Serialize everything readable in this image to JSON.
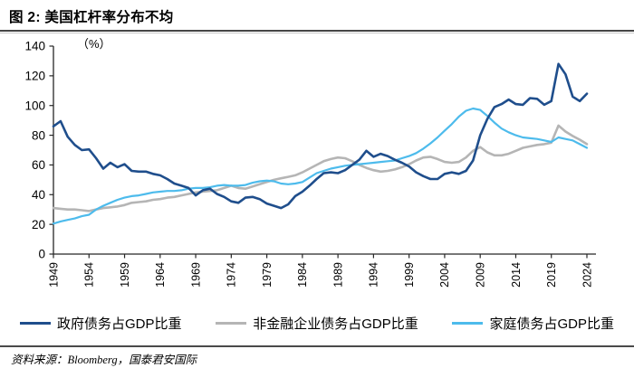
{
  "header": {
    "title": "图 2: 美国杠杆率分布不均"
  },
  "footer": {
    "source": "资料来源：Bloomberg，国泰君安国际"
  },
  "chart_data": {
    "type": "line",
    "title": "美国杠杆率分布不均",
    "unit_label": "（%）",
    "xlabel": "",
    "ylabel": "%",
    "ylim": [
      0,
      140
    ],
    "yticks": [
      0,
      20,
      40,
      60,
      80,
      100,
      120,
      140
    ],
    "xticks": [
      1949,
      1954,
      1959,
      1964,
      1969,
      1974,
      1979,
      1984,
      1989,
      1994,
      1999,
      2004,
      2009,
      2014,
      2019,
      2024
    ],
    "grid": false,
    "legend_position": "bottom",
    "axis_color": "#262626",
    "x_start": 1949,
    "x_end": 2024,
    "x_step": 1,
    "series": [
      {
        "name": "政府债务占GDP比重",
        "color": "#1f4e8c",
        "width": 2.6,
        "values": [
          86,
          89.5,
          79,
          73.5,
          70,
          70.5,
          64.5,
          57.5,
          61.5,
          58.5,
          60.5,
          56,
          55.5,
          55.5,
          54,
          53,
          50.5,
          47.5,
          46,
          44.5,
          39.5,
          43,
          44,
          40.5,
          38.5,
          35.5,
          34.5,
          38,
          38.5,
          37,
          34,
          32.5,
          31,
          33.5,
          39,
          42,
          46,
          50.5,
          54.5,
          55,
          54.5,
          56.5,
          60,
          63.5,
          69.5,
          65.5,
          67.5,
          66,
          63.5,
          61.5,
          59,
          55,
          52.5,
          50.5,
          50.5,
          54,
          55,
          54,
          56,
          63,
          80,
          91,
          99,
          101,
          104,
          101,
          100.5,
          105,
          104.5,
          100.5,
          103,
          128,
          121,
          106,
          103,
          108
        ]
      },
      {
        "name": "非金融企业债务占GDP比重",
        "color": "#b5b5b5",
        "width": 2.6,
        "values": [
          31,
          30.5,
          30,
          30,
          29.5,
          29,
          30,
          31,
          31.5,
          32,
          33,
          34.5,
          35,
          35.5,
          36.5,
          37,
          38,
          38.5,
          39.5,
          40.5,
          41.5,
          42,
          42.5,
          43,
          44.5,
          46,
          44.5,
          44,
          45.5,
          47,
          48.5,
          50,
          51,
          52,
          53,
          55,
          57.5,
          60,
          62.5,
          64,
          65,
          64.5,
          62.5,
          60,
          58,
          56.5,
          55.5,
          56,
          57,
          58.5,
          60.5,
          63,
          65,
          65.5,
          64,
          62,
          61.5,
          62,
          65,
          69.5,
          72,
          68.5,
          66.5,
          66.5,
          67.5,
          69.5,
          71.5,
          72.5,
          73.5,
          74,
          75,
          86.5,
          82.5,
          79.5,
          77,
          74
        ]
      },
      {
        "name": "家庭债务占GDP比重",
        "color": "#4dbbec",
        "width": 2.2,
        "values": [
          20.5,
          22,
          23,
          24,
          25.5,
          26.5,
          30,
          32.5,
          34.5,
          36.5,
          38,
          39,
          39.5,
          40.5,
          41.5,
          42,
          42.5,
          42.5,
          43,
          44,
          44.5,
          44.5,
          45,
          46,
          46.5,
          46,
          46,
          46.5,
          48,
          49,
          49.5,
          49,
          47.5,
          47,
          47.5,
          48.5,
          51.5,
          54.5,
          56,
          57.5,
          58.5,
          59.5,
          60,
          60.5,
          61,
          61.5,
          62,
          62.5,
          63,
          64.5,
          66,
          68,
          71,
          74.5,
          78.5,
          83,
          87.5,
          92.5,
          96.5,
          98,
          97,
          93,
          88.5,
          84.5,
          82,
          80,
          78.5,
          78,
          77.5,
          76.5,
          75.5,
          78.5,
          77.5,
          76.5,
          74,
          71.5
        ]
      }
    ]
  }
}
